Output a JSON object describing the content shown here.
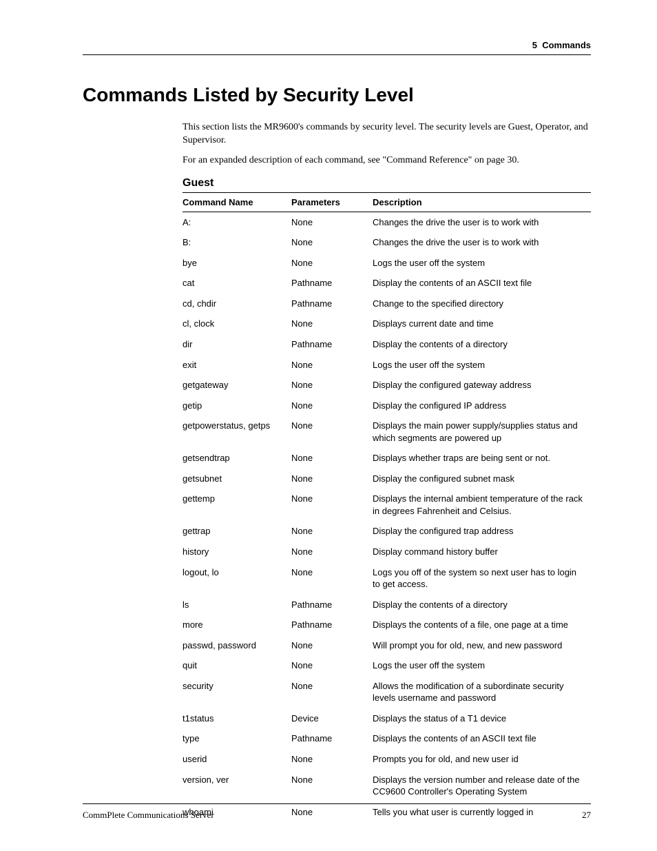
{
  "running_head": {
    "chapter_num": "5",
    "chapter_title": "Commands"
  },
  "title": "Commands Listed by Security Level",
  "intro_p1": "This section lists the MR9600's commands by security level. The security levels are Guest, Operator, and Supervisor.",
  "intro_p2": "For an expanded description of each command, see \"Command Reference\" on page 30.",
  "subsection": "Guest",
  "table": {
    "headers": [
      "Command Name",
      "Parameters",
      "Description"
    ],
    "rows": [
      [
        "A:",
        "None",
        "Changes the drive the user is to work with"
      ],
      [
        "B:",
        "None",
        "Changes the drive the user is to work with"
      ],
      [
        "bye",
        "None",
        "Logs the user off the system"
      ],
      [
        "cat",
        "Pathname",
        "Display the contents of an ASCII text file"
      ],
      [
        "cd, chdir",
        "Pathname",
        "Change to the specified directory"
      ],
      [
        "cl, clock",
        "None",
        "Displays current date and time"
      ],
      [
        "dir",
        "Pathname",
        "Display the contents of a directory"
      ],
      [
        "exit",
        "None",
        "Logs the user off the system"
      ],
      [
        "getgateway",
        "None",
        "Display the configured gateway address"
      ],
      [
        "getip",
        "None",
        "Display the configured IP address"
      ],
      [
        "getpowerstatus, getps",
        "None",
        "Displays the main power supply/supplies status and which segments are powered up"
      ],
      [
        "getsendtrap",
        "None",
        "Displays whether traps are being sent or not."
      ],
      [
        "getsubnet",
        "None",
        "Display the configured subnet mask"
      ],
      [
        "gettemp",
        "None",
        "Displays the internal ambient temperature of the rack in degrees Fahrenheit and Celsius."
      ],
      [
        "gettrap",
        "None",
        "Display the configured trap address"
      ],
      [
        "history",
        "None",
        "Display command history buffer"
      ],
      [
        "logout, lo",
        "None",
        "Logs you off of the system so next user has to login to get access."
      ],
      [
        "ls",
        "Pathname",
        "Display the contents of a directory"
      ],
      [
        "more",
        "Pathname",
        "Displays the contents of a file, one page at a time"
      ],
      [
        "passwd, password",
        "None",
        "Will prompt you for old, new, and new password"
      ],
      [
        "quit",
        "None",
        "Logs the user off the system"
      ],
      [
        "security",
        "None",
        "Allows the modification of a subordinate security levels username and password"
      ],
      [
        "t1status",
        "Device",
        "Displays the status of a T1 device"
      ],
      [
        "type",
        "Pathname",
        "Displays the contents of an ASCII text file"
      ],
      [
        "userid",
        "None",
        "Prompts you for old, and new user id"
      ],
      [
        "version, ver",
        "None",
        "Displays the version number and release date of the CC9600 Controller's Operating System"
      ],
      [
        "whoami",
        "None",
        "Tells you what user is currently logged in"
      ]
    ]
  },
  "footer": {
    "doc_title": "CommPlete Communications Server",
    "page_number": "27"
  }
}
